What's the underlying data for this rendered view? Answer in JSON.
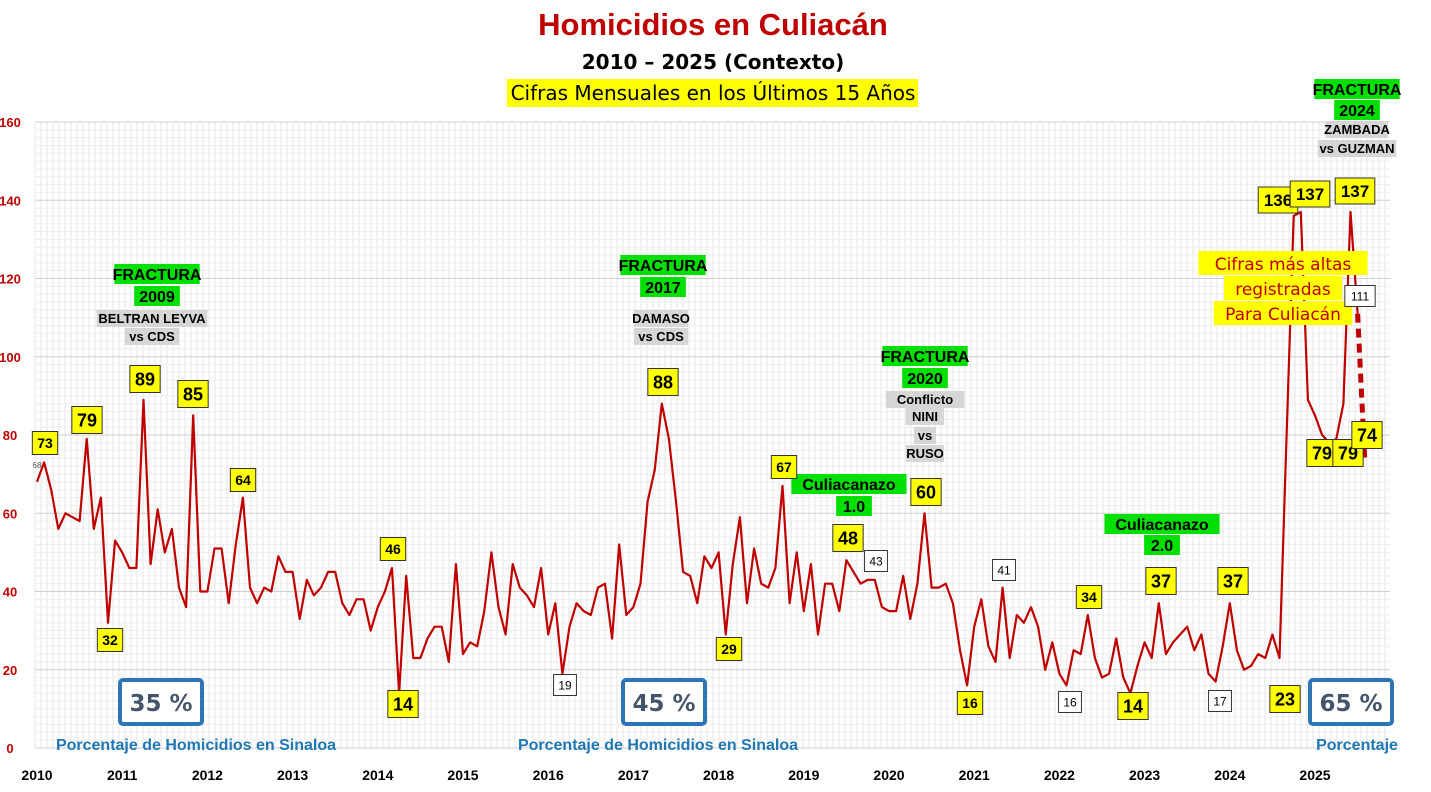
{
  "title": "Homicidios en Culiacán",
  "subtitle": "2010 – 2025 (Contexto)",
  "subtitle2": "Cifras Mensuales en los Últimos 15 Años",
  "colors": {
    "title": "#c00000",
    "line": "#c00000",
    "highlight": "#ffff00",
    "green": "#00e000",
    "blue_text": "#1f77b4",
    "box_border": "#2e75b6",
    "box_text": "#44546a",
    "grid": "#dddddd"
  },
  "chart_data": {
    "type": "line",
    "ylim": [
      0,
      160
    ],
    "yticks": [
      0,
      20,
      40,
      60,
      80,
      100,
      120,
      140,
      160
    ],
    "x_tick_labels": [
      "2010",
      "2011",
      "2012",
      "2013",
      "2014",
      "2015",
      "2016",
      "2017",
      "2018",
      "2019",
      "2020",
      "2021",
      "2022",
      "2023",
      "2024",
      "2025"
    ],
    "grid": true,
    "series": [
      {
        "values": [
          68,
          73,
          66,
          56,
          60,
          59,
          58,
          79,
          56,
          64,
          32,
          53,
          50,
          46,
          46,
          89,
          47,
          61,
          50,
          56,
          41,
          36,
          85,
          40,
          40,
          51,
          51,
          37,
          52,
          64,
          41,
          37,
          41,
          40,
          49,
          45,
          45,
          33,
          43,
          39,
          41,
          45,
          45,
          37,
          34,
          38,
          38,
          30,
          36,
          40,
          46,
          14,
          44,
          23,
          23,
          28,
          31,
          31,
          22,
          47,
          24,
          27,
          26,
          35,
          50,
          36,
          29,
          47,
          41,
          39,
          36,
          46,
          29,
          37,
          19,
          31,
          37,
          35,
          34,
          41,
          42,
          28,
          52,
          34,
          36,
          42,
          63,
          71,
          88,
          79,
          63,
          45,
          44,
          37,
          49,
          46,
          50,
          29,
          47,
          59,
          37,
          51,
          42,
          41,
          46,
          67,
          37,
          50,
          35,
          47,
          29,
          42,
          42,
          35,
          48,
          45,
          42,
          43,
          43,
          36,
          35,
          35,
          44,
          33,
          42,
          60,
          41,
          41,
          42,
          37,
          25,
          16,
          31,
          38,
          26,
          22,
          41,
          23,
          34,
          32,
          36,
          31,
          20,
          27,
          19,
          16,
          25,
          24,
          34,
          23,
          18,
          19,
          28,
          18,
          14,
          21,
          27,
          23,
          37,
          24,
          27,
          29,
          31,
          25,
          29,
          19,
          17,
          26,
          37,
          25,
          20,
          21,
          24,
          23,
          29,
          23,
          80,
          136,
          137,
          89,
          85,
          80,
          78,
          79,
          88,
          137,
          111,
          74
        ]
      }
    ],
    "annotations": [
      {
        "text": "FRACTURA",
        "style": "green"
      },
      {
        "text": "2009",
        "style": "green"
      },
      {
        "text": "BELTRAN LEYVA",
        "style": "gray"
      },
      {
        "text": "vs CDS",
        "style": "gray"
      },
      {
        "text": "FRACTURA",
        "style": "green"
      },
      {
        "text": "2017",
        "style": "green"
      },
      {
        "text": "DAMASO",
        "style": "gray"
      },
      {
        "text": "vs CDS",
        "style": "gray"
      },
      {
        "text": "FRACTURA",
        "style": "green"
      },
      {
        "text": "2020",
        "style": "green"
      },
      {
        "text": "Conflicto",
        "style": "gray"
      },
      {
        "text": "NINI",
        "style": "gray"
      },
      {
        "text": "vs",
        "style": "gray"
      },
      {
        "text": "RUSO",
        "style": "gray"
      },
      {
        "text": "Culiacanazo",
        "style": "green"
      },
      {
        "text": "1.0",
        "style": "green"
      },
      {
        "text": "Culiacanazo",
        "style": "green"
      },
      {
        "text": "2.0",
        "style": "green"
      },
      {
        "text": "FRACTURA",
        "style": "green"
      },
      {
        "text": "2024",
        "style": "green"
      },
      {
        "text": "ZAMBADA",
        "style": "gray"
      },
      {
        "text": "vs GUZMAN",
        "style": "gray"
      }
    ],
    "point_labels": [
      {
        "text": "68",
        "style": "small"
      },
      {
        "text": "73",
        "style": "yellow"
      },
      {
        "text": "79",
        "style": "yellow"
      },
      {
        "text": "32",
        "style": "yellow"
      },
      {
        "text": "89",
        "style": "yellow"
      },
      {
        "text": "85",
        "style": "yellow"
      },
      {
        "text": "64",
        "style": "yellow"
      },
      {
        "text": "46",
        "style": "yellow"
      },
      {
        "text": "14",
        "style": "yellow"
      },
      {
        "text": "19",
        "style": "white"
      },
      {
        "text": "88",
        "style": "yellow"
      },
      {
        "text": "29",
        "style": "yellow"
      },
      {
        "text": "67",
        "style": "yellow"
      },
      {
        "text": "48",
        "style": "yellow"
      },
      {
        "text": "43",
        "style": "white"
      },
      {
        "text": "60",
        "style": "yellow"
      },
      {
        "text": "16",
        "style": "yellow"
      },
      {
        "text": "41",
        "style": "white"
      },
      {
        "text": "16",
        "style": "white"
      },
      {
        "text": "34",
        "style": "yellow"
      },
      {
        "text": "14",
        "style": "yellow"
      },
      {
        "text": "37",
        "style": "yellow"
      },
      {
        "text": "17",
        "style": "white"
      },
      {
        "text": "37",
        "style": "yellow"
      },
      {
        "text": "23",
        "style": "yellow"
      },
      {
        "text": "136",
        "style": "yellow"
      },
      {
        "text": "137",
        "style": "yellow"
      },
      {
        "text": "137",
        "style": "yellow"
      },
      {
        "text": "111",
        "style": "white"
      },
      {
        "text": "79",
        "style": "yellow"
      },
      {
        "text": "79",
        "style": "yellow"
      },
      {
        "text": "74",
        "style": "yellow"
      }
    ],
    "callout_lines": [
      "Cifras más altas",
      "registradas",
      "Para Culiacán"
    ],
    "percent_boxes": [
      "35 %",
      "45 %",
      "65 %"
    ],
    "percent_captions": [
      "Porcentaje de Homicidios en Sinaloa",
      "Porcentaje de Homicidios en Sinaloa",
      "Porcentaje"
    ]
  }
}
